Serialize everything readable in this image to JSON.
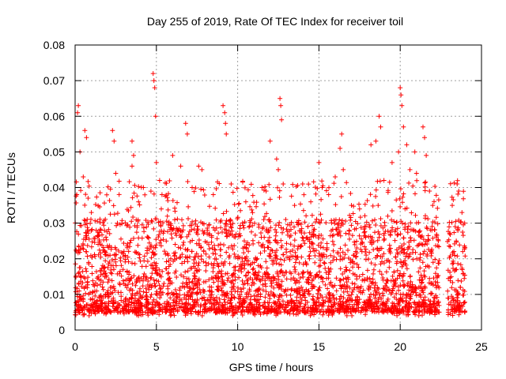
{
  "chart_data": {
    "type": "scatter",
    "title": "Day 255 of 2019, Rate Of TEC Index for receiver toil",
    "xlabel": "GPS time / hours",
    "ylabel": "ROTI / TECUs",
    "xlim": [
      0,
      25
    ],
    "ylim": [
      0,
      0.08
    ],
    "xticks": [
      0,
      5,
      10,
      15,
      20,
      25
    ],
    "xtick_labels": [
      "0",
      "5",
      "10",
      "15",
      "20",
      "25"
    ],
    "yticks": [
      0,
      0.01,
      0.02,
      0.03,
      0.04,
      0.05,
      0.06,
      0.07,
      0.08
    ],
    "ytick_labels": [
      "0",
      "0.01",
      "0.02",
      "0.03",
      "0.04",
      "0.05",
      "0.06",
      "0.07",
      "0.08"
    ],
    "grid": true,
    "marker": "+",
    "color": "#ff0000",
    "x_range_data": [
      0,
      24
    ],
    "gap_hours": [
      22.4,
      22.9
    ],
    "bulk_range": [
      0.005,
      0.03
    ],
    "series": [
      {
        "name": "ROTI",
        "points": [
          [
            0.1,
            0.038
          ],
          [
            0.15,
            0.061
          ],
          [
            0.2,
            0.063
          ],
          [
            0.3,
            0.05
          ],
          [
            0.5,
            0.043
          ],
          [
            0.6,
            0.056
          ],
          [
            0.7,
            0.054
          ],
          [
            0.8,
            0.037
          ],
          [
            1.0,
            0.033
          ],
          [
            1.3,
            0.028
          ],
          [
            2.3,
            0.056
          ],
          [
            2.4,
            0.053
          ],
          [
            2.5,
            0.044
          ],
          [
            2.6,
            0.03
          ],
          [
            3.5,
            0.046
          ],
          [
            3.5,
            0.053
          ],
          [
            3.6,
            0.049
          ],
          [
            3.9,
            0.036
          ],
          [
            4.2,
            0.04
          ],
          [
            4.8,
            0.072
          ],
          [
            4.85,
            0.07
          ],
          [
            4.9,
            0.068
          ],
          [
            4.95,
            0.06
          ],
          [
            5.0,
            0.047
          ],
          [
            5.2,
            0.042
          ],
          [
            5.3,
            0.034
          ],
          [
            6.0,
            0.049
          ],
          [
            6.5,
            0.046
          ],
          [
            6.8,
            0.058
          ],
          [
            6.9,
            0.055
          ],
          [
            7.2,
            0.04
          ],
          [
            7.6,
            0.046
          ],
          [
            7.8,
            0.045
          ],
          [
            8.5,
            0.038
          ],
          [
            9.1,
            0.063
          ],
          [
            9.2,
            0.061
          ],
          [
            9.25,
            0.058
          ],
          [
            9.3,
            0.055
          ],
          [
            9.6,
            0.041
          ],
          [
            10.5,
            0.036
          ],
          [
            11.5,
            0.04
          ],
          [
            12.0,
            0.053
          ],
          [
            12.4,
            0.048
          ],
          [
            12.5,
            0.045
          ],
          [
            12.6,
            0.065
          ],
          [
            12.65,
            0.063
          ],
          [
            12.7,
            0.059
          ],
          [
            12.8,
            0.041
          ],
          [
            13.5,
            0.035
          ],
          [
            14.0,
            0.041
          ],
          [
            14.5,
            0.036
          ],
          [
            15.0,
            0.047
          ],
          [
            15.2,
            0.04
          ],
          [
            15.6,
            0.038
          ],
          [
            16.0,
            0.043
          ],
          [
            16.3,
            0.051
          ],
          [
            16.4,
            0.055
          ],
          [
            16.5,
            0.045
          ],
          [
            17.0,
            0.035
          ],
          [
            17.5,
            0.034
          ],
          [
            18.2,
            0.052
          ],
          [
            18.5,
            0.053
          ],
          [
            18.7,
            0.06
          ],
          [
            18.8,
            0.057
          ],
          [
            19.0,
            0.042
          ],
          [
            19.5,
            0.047
          ],
          [
            19.9,
            0.05
          ],
          [
            20.0,
            0.068
          ],
          [
            20.05,
            0.066
          ],
          [
            20.1,
            0.063
          ],
          [
            20.2,
            0.057
          ],
          [
            20.4,
            0.052
          ],
          [
            20.6,
            0.045
          ],
          [
            20.9,
            0.05
          ],
          [
            21.0,
            0.044
          ],
          [
            21.4,
            0.057
          ],
          [
            21.5,
            0.054
          ],
          [
            21.6,
            0.049
          ],
          [
            21.8,
            0.039
          ],
          [
            22.0,
            0.035
          ],
          [
            23.2,
            0.035
          ],
          [
            23.5,
            0.041
          ],
          [
            23.6,
            0.039
          ],
          [
            23.8,
            0.033
          ]
        ]
      }
    ]
  }
}
